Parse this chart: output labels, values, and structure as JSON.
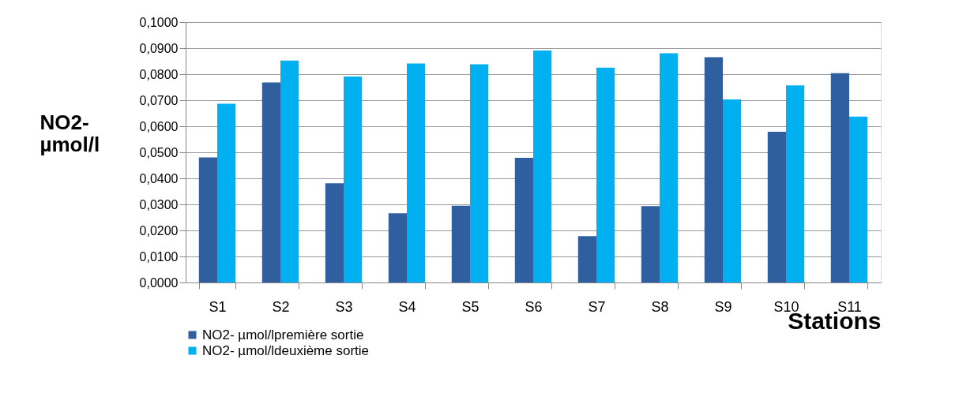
{
  "chart_data": {
    "type": "bar",
    "ylabel": "NO2- µmol/l",
    "xlabel": "Stations",
    "categories": [
      "S1",
      "S2",
      "S3",
      "S4",
      "S5",
      "S6",
      "S7",
      "S8",
      "S9",
      "S10",
      "S11"
    ],
    "series": [
      {
        "name": "NO2- µmol/lpremière sortie",
        "color": "#2f5f9e",
        "values": [
          0.048,
          0.0768,
          0.0381,
          0.0266,
          0.0295,
          0.0479,
          0.0178,
          0.0293,
          0.0865,
          0.0579,
          0.0804
        ]
      },
      {
        "name": "NO2- µmol/ldeuxième sortie",
        "color": "#00b0f0",
        "values": [
          0.0686,
          0.0852,
          0.0791,
          0.0841,
          0.0838,
          0.0891,
          0.0825,
          0.088,
          0.0703,
          0.0757,
          0.0637
        ]
      }
    ],
    "ylim": [
      0,
      0.1
    ],
    "yticks": [
      {
        "value": 0,
        "label": "0,0000"
      },
      {
        "value": 0.01,
        "label": "0,0100"
      },
      {
        "value": 0.02,
        "label": "0,0200"
      },
      {
        "value": 0.03,
        "label": "0,0300"
      },
      {
        "value": 0.04,
        "label": "0,0400"
      },
      {
        "value": 0.05,
        "label": "0,0500"
      },
      {
        "value": 0.06,
        "label": "0,0600"
      },
      {
        "value": 0.07,
        "label": "0,0700"
      },
      {
        "value": 0.08,
        "label": "0,0800"
      },
      {
        "value": 0.09,
        "label": "0,0900"
      },
      {
        "value": 0.1,
        "label": "0,1000"
      }
    ],
    "grid": "y",
    "legend": "bottom"
  }
}
